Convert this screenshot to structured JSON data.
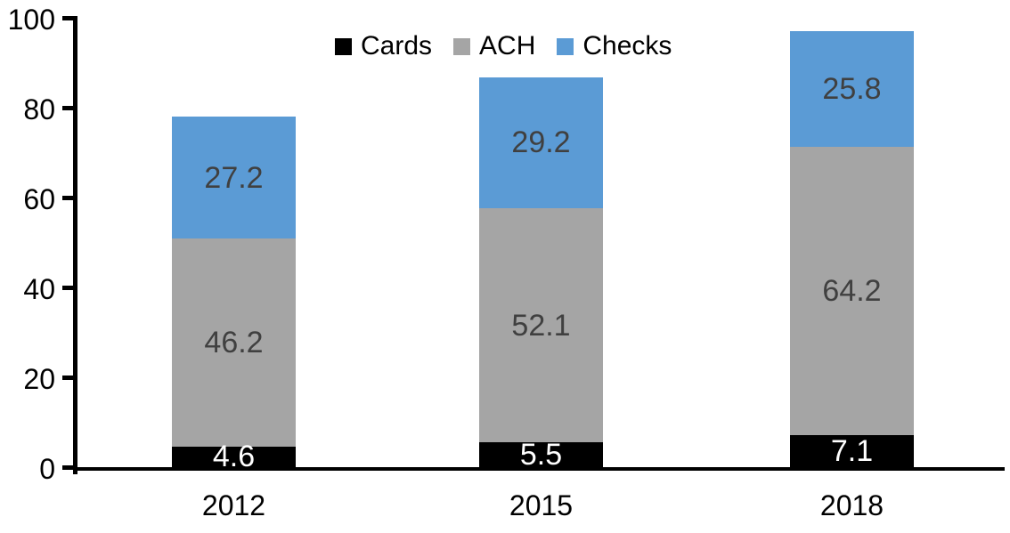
{
  "chart_data": {
    "type": "bar",
    "stacked": true,
    "title": "",
    "categories": [
      "2012",
      "2015",
      "2018"
    ],
    "series": [
      {
        "name": "Cards",
        "color": "#000000",
        "label_color": "#FFFFFF",
        "values": [
          4.6,
          5.5,
          7.1
        ]
      },
      {
        "name": "ACH",
        "color": "#A5A5A5",
        "label_color": "#404040",
        "values": [
          46.2,
          52.1,
          64.2
        ]
      },
      {
        "name": "Checks",
        "color": "#5B9BD5",
        "label_color": "#404040",
        "values": [
          27.2,
          29.2,
          25.8
        ]
      }
    ],
    "totals": [
      78.0,
      86.8,
      97.1
    ],
    "ylim": [
      0,
      100
    ],
    "yticks": [
      0,
      20,
      40,
      60,
      80,
      100
    ],
    "legend_position": "top",
    "grid": false,
    "axis_color": "#000000",
    "background_color": "#FFFFFF"
  }
}
